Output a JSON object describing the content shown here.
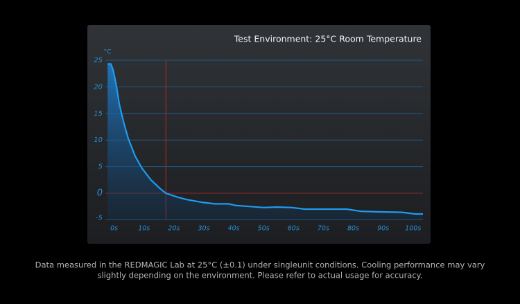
{
  "chart_data": {
    "type": "line",
    "title": "Test Environment: 25°C Room Temperature",
    "y_unit": "°C",
    "x": [
      -1.5,
      -0.4,
      0.3,
      1.3,
      2.4,
      3.8,
      5.4,
      7.7,
      10,
      13,
      16,
      18,
      21.7,
      25,
      30,
      34.4,
      39,
      41.4,
      46,
      50.7,
      55.3,
      60,
      64.6,
      71.5,
      78.5,
      83.2,
      89,
      97,
      101.5,
      104
    ],
    "values": [
      24.3,
      24.3,
      23.3,
      20.7,
      16.8,
      13.5,
      10.3,
      7.0,
      4.7,
      2.5,
      0.9,
      0,
      -0.7,
      -1.2,
      -1.7,
      -2,
      -2,
      -2.3,
      -2.5,
      -2.7,
      -2.6,
      -2.7,
      -3,
      -3,
      -3,
      -3.4,
      -3.5,
      -3.6,
      -3.9,
      -3.9
    ],
    "color": "#1e9cf0",
    "xlim": [
      -2,
      104
    ],
    "ylim": [
      -5,
      25
    ],
    "xticks": [
      {
        "value": 0,
        "label": "0s"
      },
      {
        "value": 10,
        "label": "10s"
      },
      {
        "value": 20,
        "label": "20s"
      },
      {
        "value": 30,
        "label": "30s"
      },
      {
        "value": 40,
        "label": "40s"
      },
      {
        "value": 50,
        "label": "50s"
      },
      {
        "value": 60,
        "label": "60s"
      },
      {
        "value": 70,
        "label": "70s"
      },
      {
        "value": 80,
        "label": "80s"
      },
      {
        "value": 90,
        "label": "90s"
      },
      {
        "value": 100,
        "label": "100s"
      }
    ],
    "yticks": [
      -5,
      0,
      5,
      10,
      15,
      20,
      25
    ],
    "vline_x": 18,
    "grid": true,
    "footnote": [
      "Data measured in the REDMAGIC Lab at 25°C (±0.1) under singleunit conditions. Cooling performance may vary",
      "slightly depending on the environment. Please refer to actual usage for accuracy."
    ]
  }
}
